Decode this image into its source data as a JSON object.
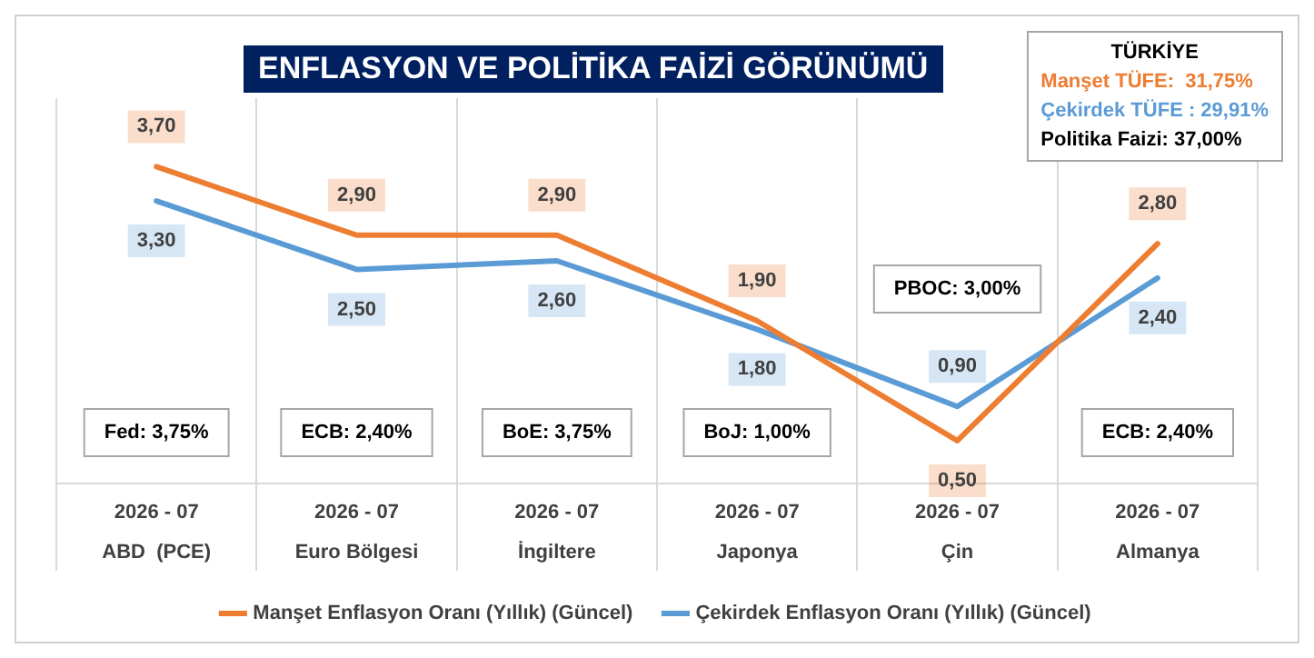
{
  "chart_data": {
    "type": "line",
    "title": "ENFLASYON VE POLİTİKA FAİZİ GÖRÜNÜMÜ",
    "categories": [
      "2026 - 07\nABD  (PCE)",
      "2026 - 07\nEuro Bölgesi",
      "2026 - 07\nİngiltere",
      "2026 - 07\nJaponya",
      "2026 - 07\nÇin",
      "2026 - 07\nAlmanya"
    ],
    "series": [
      {
        "name": "Manşet Enflasyon Oranı (Yıllık) (Güncel)",
        "color": "#ed7d31",
        "values": [
          3.7,
          2.9,
          2.9,
          1.9,
          0.5,
          2.8
        ],
        "value_labels": [
          "3,70",
          "2,90",
          "2,90",
          "1,90",
          "0,50",
          "2,80"
        ]
      },
      {
        "name": "Çekirdek Enflasyon Oranı (Yıllık) (Güncel)",
        "color": "#5b9bd5",
        "values": [
          3.3,
          2.5,
          2.6,
          1.8,
          0.9,
          2.4
        ],
        "value_labels": [
          "3,30",
          "2,50",
          "2,60",
          "1,80",
          "0,90",
          "2,40"
        ]
      }
    ],
    "annotations": [
      "Fed: 3,75%",
      "ECB: 2,40%",
      "BoE: 3,75%",
      "BoJ: 1,00%",
      "PBOC: 3,00%",
      "ECB: 2,40%",
      "TÜRKİYE",
      "Manşet TÜFE:  31,75%",
      "Çekirdek TÜFE : 29,91%",
      "Politika Faizi: 37,00%"
    ],
    "legend": "bottom",
    "grid": "x",
    "marker": "none",
    "line_style": "solid"
  }
}
